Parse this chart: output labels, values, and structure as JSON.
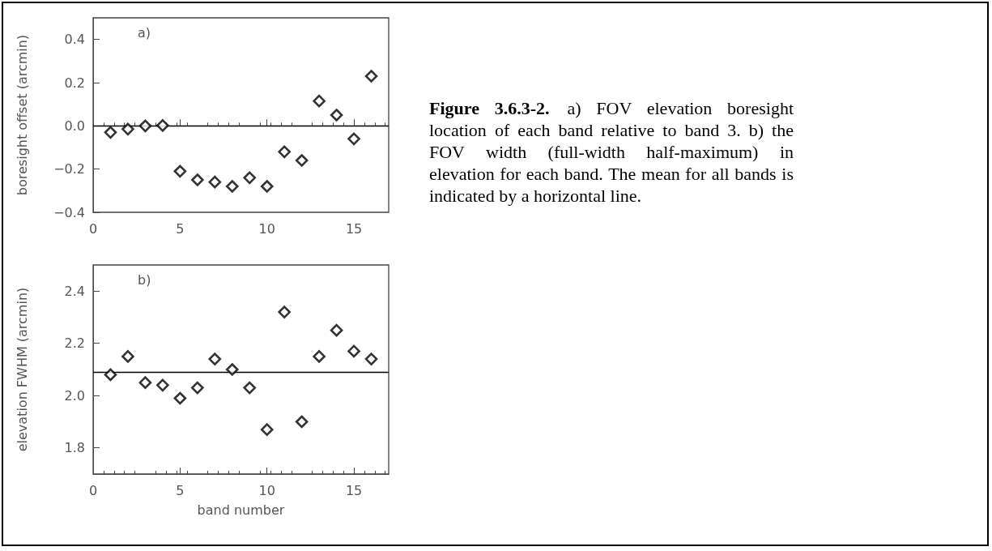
{
  "chart_data": [
    {
      "type": "scatter",
      "ylabel": "boresight offset (arcmin)",
      "annotations": [
        "a)",
        "Figure 3.6.3-2.",
        "a) FOV elevation boresight location of each band relative to band 3.  b) the FOV width (full-width half-maximum) in elevation for each band.  The mean for all bands is indicated by a horizontal line."
      ],
      "x": [
        1,
        2,
        3,
        4,
        5,
        6,
        7,
        8,
        9,
        10,
        11,
        12,
        13,
        14,
        15,
        16
      ],
      "values": [
        -0.03,
        -0.015,
        0.0,
        0.002,
        -0.21,
        -0.25,
        -0.26,
        -0.28,
        -0.24,
        -0.28,
        -0.12,
        -0.16,
        0.115,
        0.05,
        -0.06,
        0.23
      ],
      "color": "#000000",
      "marker": "diamond",
      "xlim": [
        0,
        17
      ],
      "xticks": [
        0,
        5,
        10,
        15
      ],
      "ylim": [
        -0.4,
        0.5
      ],
      "yticks": [
        -0.4,
        -0.2,
        {
          "value": 0,
          "label": "0.0"
        },
        0.2,
        0.4
      ],
      "grid": false,
      "ref_lines": [
        {
          "axis": "y",
          "value": 0,
          "color": "#000000"
        }
      ]
    },
    {
      "type": "scatter",
      "ylabel": "elevation FWHM (arcmin)",
      "xlabel": "band number",
      "annotations": [
        "b)"
      ],
      "x": [
        1,
        2,
        3,
        4,
        5,
        6,
        7,
        8,
        9,
        10,
        11,
        12,
        13,
        14,
        15,
        16
      ],
      "values": [
        2.08,
        2.15,
        2.05,
        2.04,
        1.99,
        2.03,
        2.14,
        2.1,
        2.03,
        1.87,
        2.32,
        1.9,
        2.15,
        2.25,
        2.17,
        2.14
      ],
      "color": "#000000",
      "marker": "diamond",
      "xlim": [
        0,
        17
      ],
      "xticks": [
        0,
        5,
        10,
        15
      ],
      "ylim": [
        1.7,
        2.5
      ],
      "yticks": [
        1.8,
        {
          "value": 2,
          "label": "2.0"
        },
        2.2,
        2.4
      ],
      "grid": false,
      "ref_lines": [
        {
          "axis": "y",
          "value": 2.09,
          "color": "#000000"
        }
      ]
    }
  ]
}
